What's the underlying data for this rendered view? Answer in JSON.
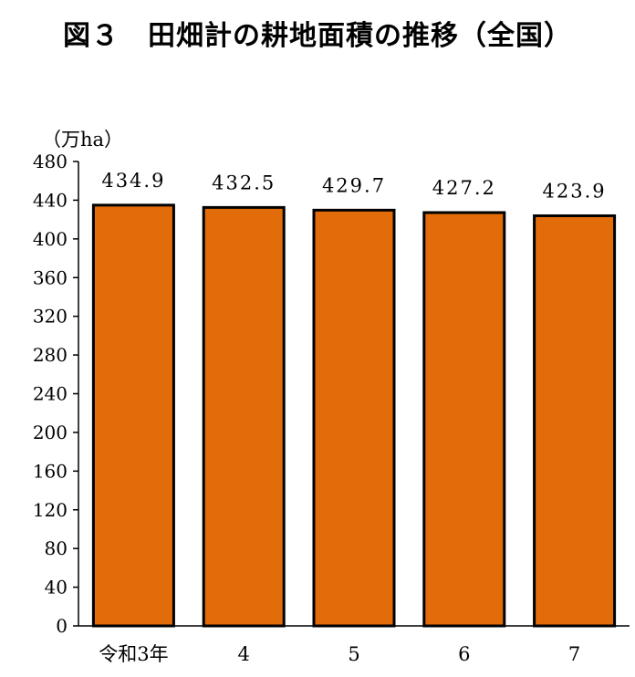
{
  "title": "図３　田畑計の耕地面積の推移（全国）",
  "chart_data": {
    "type": "bar",
    "categories": [
      "令和3年",
      "4",
      "5",
      "6",
      "7"
    ],
    "values": [
      434.9,
      432.5,
      429.7,
      427.2,
      423.9
    ],
    "value_labels": [
      "434.9",
      "432.5",
      "429.7",
      "427.2",
      "423.9"
    ],
    "ylabel": "（万ha）",
    "ylim": [
      0,
      480
    ],
    "yticks": [
      0,
      40,
      80,
      120,
      160,
      200,
      240,
      280,
      320,
      360,
      400,
      440,
      480
    ],
    "grid": false,
    "bar_color": "#E36C0A",
    "bar_edge_color": "#000000"
  }
}
